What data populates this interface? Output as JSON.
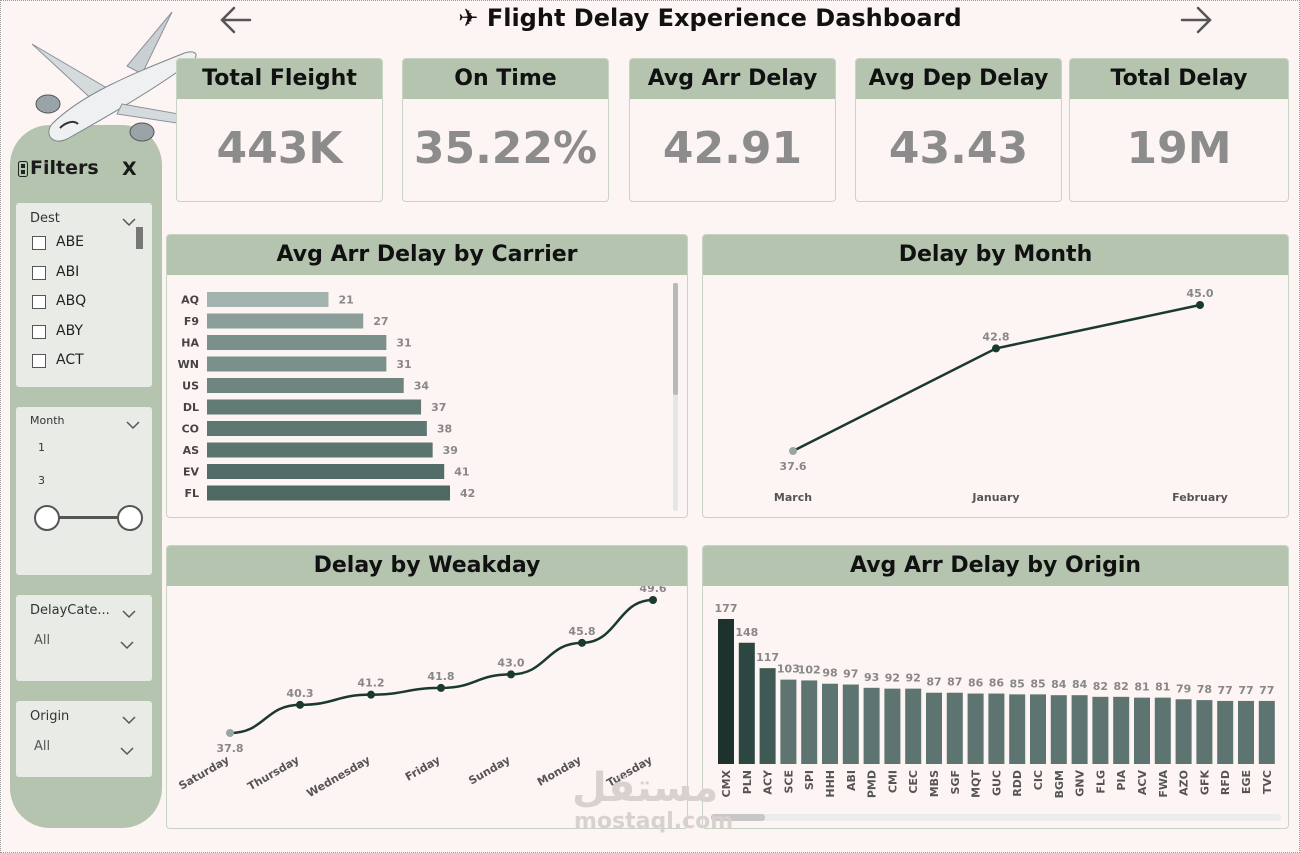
{
  "header": {
    "title": "✈ Flight Delay Experience Dashboard",
    "back_icon": "arrow-left-icon",
    "forward_icon": "arrow-right-icon"
  },
  "kpis": [
    {
      "label": "Total Fleight",
      "value": "443K"
    },
    {
      "label": "On Time",
      "value": "35.22%"
    },
    {
      "label": "Avg Arr Delay",
      "value": "42.91"
    },
    {
      "label": "Avg Dep Delay",
      "value": "43.43"
    },
    {
      "label": "Total Delay",
      "value": "19M"
    }
  ],
  "filters": {
    "title": "Filters",
    "close_label": "X",
    "dest": {
      "title": "Dest",
      "items": [
        "ABE",
        "ABI",
        "ABQ",
        "ABY",
        "ACT"
      ]
    },
    "month": {
      "title": "Month",
      "min_label": "1",
      "max_label": "3"
    },
    "delay_category": {
      "title": "DelayCate...",
      "value": "All"
    },
    "origin": {
      "title": "Origin",
      "value": "All"
    }
  },
  "colors": {
    "header_bg": "#b5c4af",
    "panel_bg": "#b5c4af",
    "page_bg": "#fdf5f3",
    "line": "#1b3a2f",
    "bar_light": "#a3b3b0",
    "bar_dark": "#1d322c"
  },
  "chart_data": [
    {
      "type": "bar",
      "orientation": "horizontal",
      "title": "Avg Arr Delay by Carrier",
      "categories": [
        "AQ",
        "F9",
        "HA",
        "WN",
        "US",
        "DL",
        "CO",
        "AS",
        "EV",
        "FL"
      ],
      "values": [
        21,
        27,
        31,
        31,
        34,
        37,
        38,
        39,
        41,
        42
      ]
    },
    {
      "type": "line",
      "title": "Delay by Month",
      "categories": [
        "March",
        "January",
        "February"
      ],
      "values": [
        37.6,
        42.8,
        45.0
      ],
      "labels": [
        "37.6",
        "42.8",
        "45.0"
      ]
    },
    {
      "type": "line",
      "title": "Delay by Weakday",
      "categories": [
        "Saturday",
        "Thursday",
        "Wednesday",
        "Friday",
        "Sunday",
        "Monday",
        "Tuesday"
      ],
      "values": [
        37.8,
        40.3,
        41.2,
        41.8,
        43.0,
        45.8,
        49.6
      ],
      "labels": [
        "37.8",
        "40.3",
        "41.2",
        "41.8",
        "43.0",
        "45.8",
        "49.6"
      ]
    },
    {
      "type": "bar",
      "orientation": "vertical",
      "title": "Avg Arr Delay by Origin",
      "categories": [
        "CMX",
        "PLN",
        "ACY",
        "SCE",
        "SPI",
        "HHH",
        "ABI",
        "PMD",
        "CMI",
        "CEC",
        "MBS",
        "SGF",
        "MQT",
        "GUC",
        "RDD",
        "CIC",
        "BGM",
        "GNV",
        "FLG",
        "PIA",
        "ACV",
        "FWA",
        "AZO",
        "GFK",
        "RFD",
        "EGE",
        "TVC"
      ],
      "values": [
        177,
        148,
        117,
        103,
        102,
        98,
        97,
        93,
        92,
        92,
        87,
        87,
        86,
        86,
        85,
        85,
        84,
        84,
        82,
        82,
        81,
        81,
        79,
        78,
        77,
        77,
        77
      ]
    }
  ],
  "watermark": {
    "arabic": "مستقل",
    "latin": "mostaql.com"
  }
}
